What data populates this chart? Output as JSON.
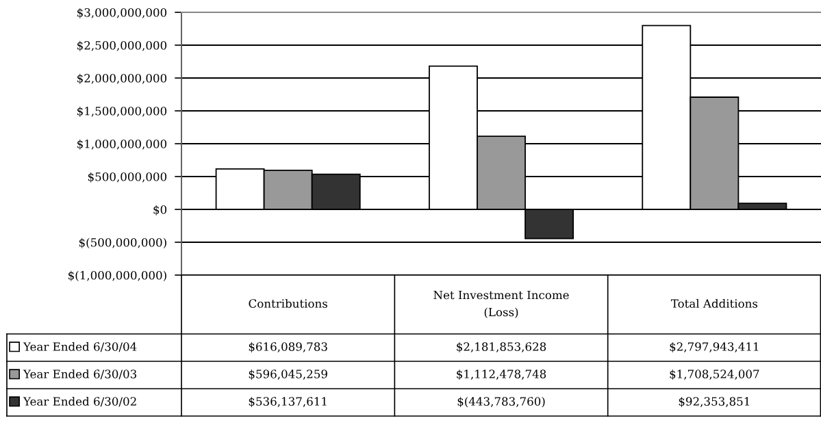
{
  "chart_data": {
    "type": "bar",
    "categories": [
      "Contributions",
      "Net Investment Income (Loss)",
      "Total Additions"
    ],
    "series": [
      {
        "name": "Year Ended 6/30/04",
        "color": "#ffffff",
        "values": [
          616089783,
          2181853628,
          2797943411
        ],
        "value_labels": [
          "$616,089,783",
          "$2,181,853,628",
          "$2,797,943,411"
        ]
      },
      {
        "name": "Year Ended 6/30/03",
        "color": "#999999",
        "values": [
          596045259,
          1112478748,
          1708524007
        ],
        "value_labels": [
          "$596,045,259",
          "$1,112,478,748",
          "$1,708,524,007"
        ]
      },
      {
        "name": "Year Ended 6/30/02",
        "color": "#333333",
        "values": [
          536137611,
          -443783760,
          92353851
        ],
        "value_labels": [
          "$536,137,611",
          "$(443,783,760)",
          "$92,353,851"
        ]
      }
    ],
    "ylim": [
      -1000000000,
      3000000000
    ],
    "yticks": [
      {
        "value": -1000000000,
        "label": "$(1,000,000,000)"
      },
      {
        "value": -500000000,
        "label": "$(500,000,000)"
      },
      {
        "value": 0,
        "label": "$0"
      },
      {
        "value": 500000000,
        "label": "$500,000,000"
      },
      {
        "value": 1000000000,
        "label": "$1,000,000,000"
      },
      {
        "value": 1500000000,
        "label": "$1,500,000,000"
      },
      {
        "value": 2000000000,
        "label": "$2,000,000,000"
      },
      {
        "value": 2500000000,
        "label": "$2,500,000,000"
      },
      {
        "value": 3000000000,
        "label": "$3,000,000,000"
      }
    ],
    "grid": "y",
    "legend": "bottom"
  }
}
